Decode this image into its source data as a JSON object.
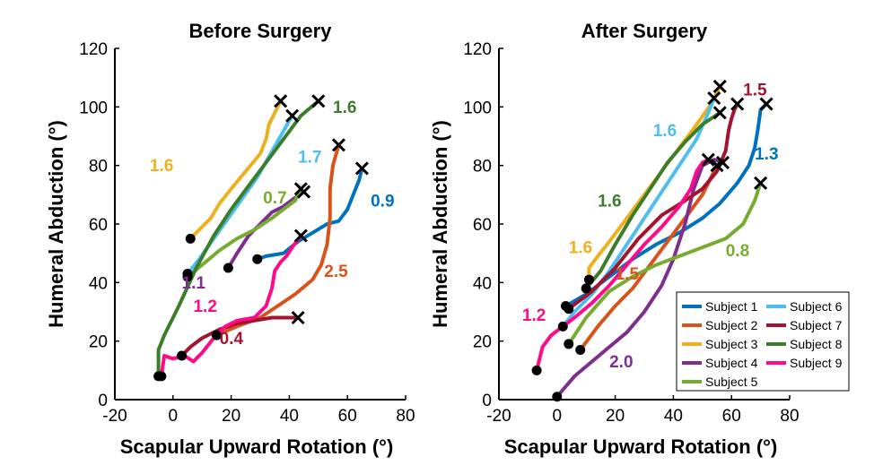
{
  "chart_data": [
    {
      "type": "line",
      "title": "Before Surgery",
      "xlabel": "Scapular Upward Rotation (°)",
      "ylabel": "Humeral Abduction (°)",
      "xlim": [
        -20,
        80
      ],
      "ylim": [
        0,
        120
      ],
      "xticks": [
        -20,
        0,
        20,
        40,
        60,
        80
      ],
      "yticks": [
        0,
        20,
        40,
        60,
        80,
        100,
        120
      ],
      "series": [
        {
          "name": "Subject 1",
          "color": "#0072bd",
          "ratio": "0.9",
          "ratio_at": [
            68,
            66
          ],
          "x": [
            29,
            32,
            38,
            43,
            48,
            53,
            57,
            60,
            62,
            64,
            65
          ],
          "y": [
            48,
            49,
            50,
            54,
            57,
            60,
            61,
            65,
            70,
            75,
            79
          ]
        },
        {
          "name": "Subject 2",
          "color": "#d95319",
          "ratio": "2.5",
          "ratio_at": [
            52,
            42
          ],
          "x": [
            15,
            22,
            30,
            36,
            42,
            48,
            51,
            53,
            54,
            54,
            55,
            57
          ],
          "y": [
            22,
            25,
            28,
            32,
            36,
            41,
            46,
            53,
            62,
            72,
            80,
            87
          ]
        },
        {
          "name": "Subject 3",
          "color": "#edb120",
          "ratio": "1.6",
          "ratio_at": [
            -8,
            78
          ],
          "x": [
            6,
            9,
            13,
            16,
            20,
            25,
            30,
            32,
            33,
            35,
            37
          ],
          "y": [
            55,
            58,
            62,
            67,
            72,
            78,
            84,
            89,
            94,
            98,
            102
          ]
        },
        {
          "name": "Subject 4",
          "color": "#7e2f8e",
          "ratio": "1.1",
          "ratio_at": [
            3,
            38
          ],
          "x": [
            19,
            22,
            26,
            30,
            34,
            38,
            42,
            45
          ],
          "y": [
            45,
            50,
            56,
            60,
            64,
            66,
            69,
            71
          ]
        },
        {
          "name": "Subject 5",
          "color": "#77ac30",
          "ratio": "0.7",
          "ratio_at": [
            31,
            67
          ],
          "x": [
            5,
            10,
            16,
            22,
            28,
            34,
            38,
            42,
            44
          ],
          "y": [
            42,
            46,
            51,
            55,
            58,
            62,
            65,
            68,
            72
          ]
        },
        {
          "name": "Subject 6",
          "color": "#4dbeee",
          "ratio": "1.7",
          "ratio_at": [
            43,
            81
          ],
          "x": [
            5,
            9,
            14,
            19,
            24,
            29,
            33,
            37,
            41
          ],
          "y": [
            43,
            48,
            55,
            62,
            69,
            76,
            83,
            90,
            97
          ]
        },
        {
          "name": "Subject 7",
          "color": "#a2142f",
          "ratio": "0.4",
          "ratio_at": [
            16,
            19
          ],
          "x": [
            3,
            6,
            10,
            16,
            22,
            28,
            34,
            39,
            43
          ],
          "y": [
            15,
            18,
            21,
            24,
            26,
            27,
            28,
            28,
            28
          ]
        },
        {
          "name": "Subject 8",
          "color": "#3b7d2b",
          "ratio": "1.6",
          "ratio_at": [
            55,
            98
          ],
          "x": [
            -5,
            -5,
            -3,
            2,
            8,
            14,
            20,
            26,
            32,
            38,
            44,
            50
          ],
          "y": [
            8,
            17,
            22,
            32,
            45,
            56,
            65,
            73,
            81,
            89,
            97,
            102
          ]
        },
        {
          "name": "Subject 9",
          "color": "#ff0a88",
          "ratio": "1.2",
          "ratio_at": [
            7,
            30
          ],
          "x": [
            -4,
            -3,
            0,
            4,
            7,
            10,
            14,
            18,
            22,
            28,
            32,
            34,
            35,
            37,
            39,
            41,
            44
          ],
          "y": [
            8,
            15,
            14,
            15,
            13,
            16,
            21,
            25,
            27,
            28,
            32,
            38,
            44,
            47,
            49,
            52,
            56
          ]
        }
      ]
    },
    {
      "type": "line",
      "title": "After Surgery",
      "xlabel": "Scapular Upward Rotation (°)",
      "ylabel": "Humeral Abduction (°)",
      "xlim": [
        -20,
        80
      ],
      "ylim": [
        0,
        120
      ],
      "xticks": [
        -20,
        0,
        20,
        40,
        60,
        80
      ],
      "yticks": [
        0,
        20,
        40,
        60,
        80,
        100,
        120
      ],
      "series": [
        {
          "name": "Subject 1",
          "color": "#0072bd",
          "ratio": "1.3",
          "ratio_at": [
            68,
            82
          ],
          "x": [
            3,
            10,
            18,
            26,
            34,
            42,
            50,
            56,
            62,
            66,
            68,
            69,
            70,
            72
          ],
          "y": [
            32,
            36,
            42,
            48,
            53,
            57,
            62,
            67,
            74,
            80,
            86,
            92,
            99,
            101
          ]
        },
        {
          "name": "Subject 2",
          "color": "#d95319",
          "ratio": "1.5",
          "ratio_at": [
            20,
            41
          ],
          "x": [
            8,
            14,
            20,
            26,
            32,
            38,
            44,
            50,
            55
          ],
          "y": [
            17,
            25,
            32,
            38,
            46,
            54,
            62,
            70,
            80
          ]
        },
        {
          "name": "Subject 3",
          "color": "#edb120",
          "ratio": "1.6",
          "ratio_at": [
            4,
            50
          ],
          "x": [
            11,
            11,
            14,
            18,
            24,
            30,
            36,
            42,
            48,
            53,
            56
          ],
          "y": [
            41,
            45,
            49,
            54,
            62,
            70,
            78,
            86,
            94,
            101,
            107
          ]
        },
        {
          "name": "Subject 4",
          "color": "#7e2f8e",
          "ratio": "2.0",
          "ratio_at": [
            18,
            11
          ],
          "x": [
            0,
            6,
            12,
            18,
            24,
            30,
            36,
            40,
            44,
            47,
            50,
            54,
            57
          ],
          "y": [
            1,
            8,
            13,
            18,
            23,
            30,
            39,
            48,
            60,
            72,
            80,
            82,
            81
          ]
        },
        {
          "name": "Subject 5",
          "color": "#77ac30",
          "ratio": "0.8",
          "ratio_at": [
            58,
            49
          ],
          "x": [
            4,
            10,
            18,
            26,
            34,
            42,
            50,
            58,
            64,
            68,
            70
          ],
          "y": [
            19,
            28,
            37,
            42,
            46,
            49,
            52,
            55,
            60,
            68,
            74
          ]
        },
        {
          "name": "Subject 6",
          "color": "#4dbeee",
          "ratio": "1.6",
          "ratio_at": [
            33,
            90
          ],
          "x": [
            2,
            6,
            12,
            18,
            24,
            30,
            36,
            42,
            48,
            52,
            54
          ],
          "y": [
            25,
            30,
            36,
            44,
            53,
            62,
            71,
            80,
            89,
            98,
            103
          ]
        },
        {
          "name": "Subject 7",
          "color": "#a2142f",
          "ratio": "1.5",
          "ratio_at": [
            64,
            104
          ],
          "x": [
            4,
            12,
            20,
            28,
            36,
            44,
            50,
            55,
            58,
            59,
            60,
            61,
            62
          ],
          "y": [
            31,
            37,
            45,
            55,
            63,
            68,
            72,
            78,
            85,
            92,
            96,
            99,
            101
          ]
        },
        {
          "name": "Subject 8",
          "color": "#3b7d2b",
          "ratio": "1.6",
          "ratio_at": [
            14,
            66
          ],
          "x": [
            10,
            15,
            20,
            26,
            32,
            38,
            44,
            50,
            56
          ],
          "y": [
            38,
            44,
            53,
            63,
            72,
            81,
            88,
            94,
            98
          ]
        },
        {
          "name": "Subject 9",
          "color": "#ff0a88",
          "ratio": "1.2",
          "ratio_at": [
            -12,
            27
          ],
          "x": [
            -7,
            -5,
            -2,
            2,
            6,
            12,
            18,
            24,
            30,
            36,
            42,
            46,
            48,
            50,
            52
          ],
          "y": [
            10,
            18,
            22,
            25,
            28,
            33,
            39,
            46,
            53,
            59,
            66,
            72,
            78,
            81,
            82
          ]
        }
      ]
    }
  ],
  "legend": {
    "placement": "bottom-right",
    "entries": [
      "Subject 1",
      "Subject 6",
      "Subject 2",
      "Subject 7",
      "Subject 3",
      "Subject 8",
      "Subject 4",
      "Subject 9",
      "Subject 5"
    ],
    "colors": [
      "#0072bd",
      "#4dbeee",
      "#d95319",
      "#a2142f",
      "#edb120",
      "#3b7d2b",
      "#7e2f8e",
      "#ff0a88",
      "#77ac30"
    ]
  }
}
